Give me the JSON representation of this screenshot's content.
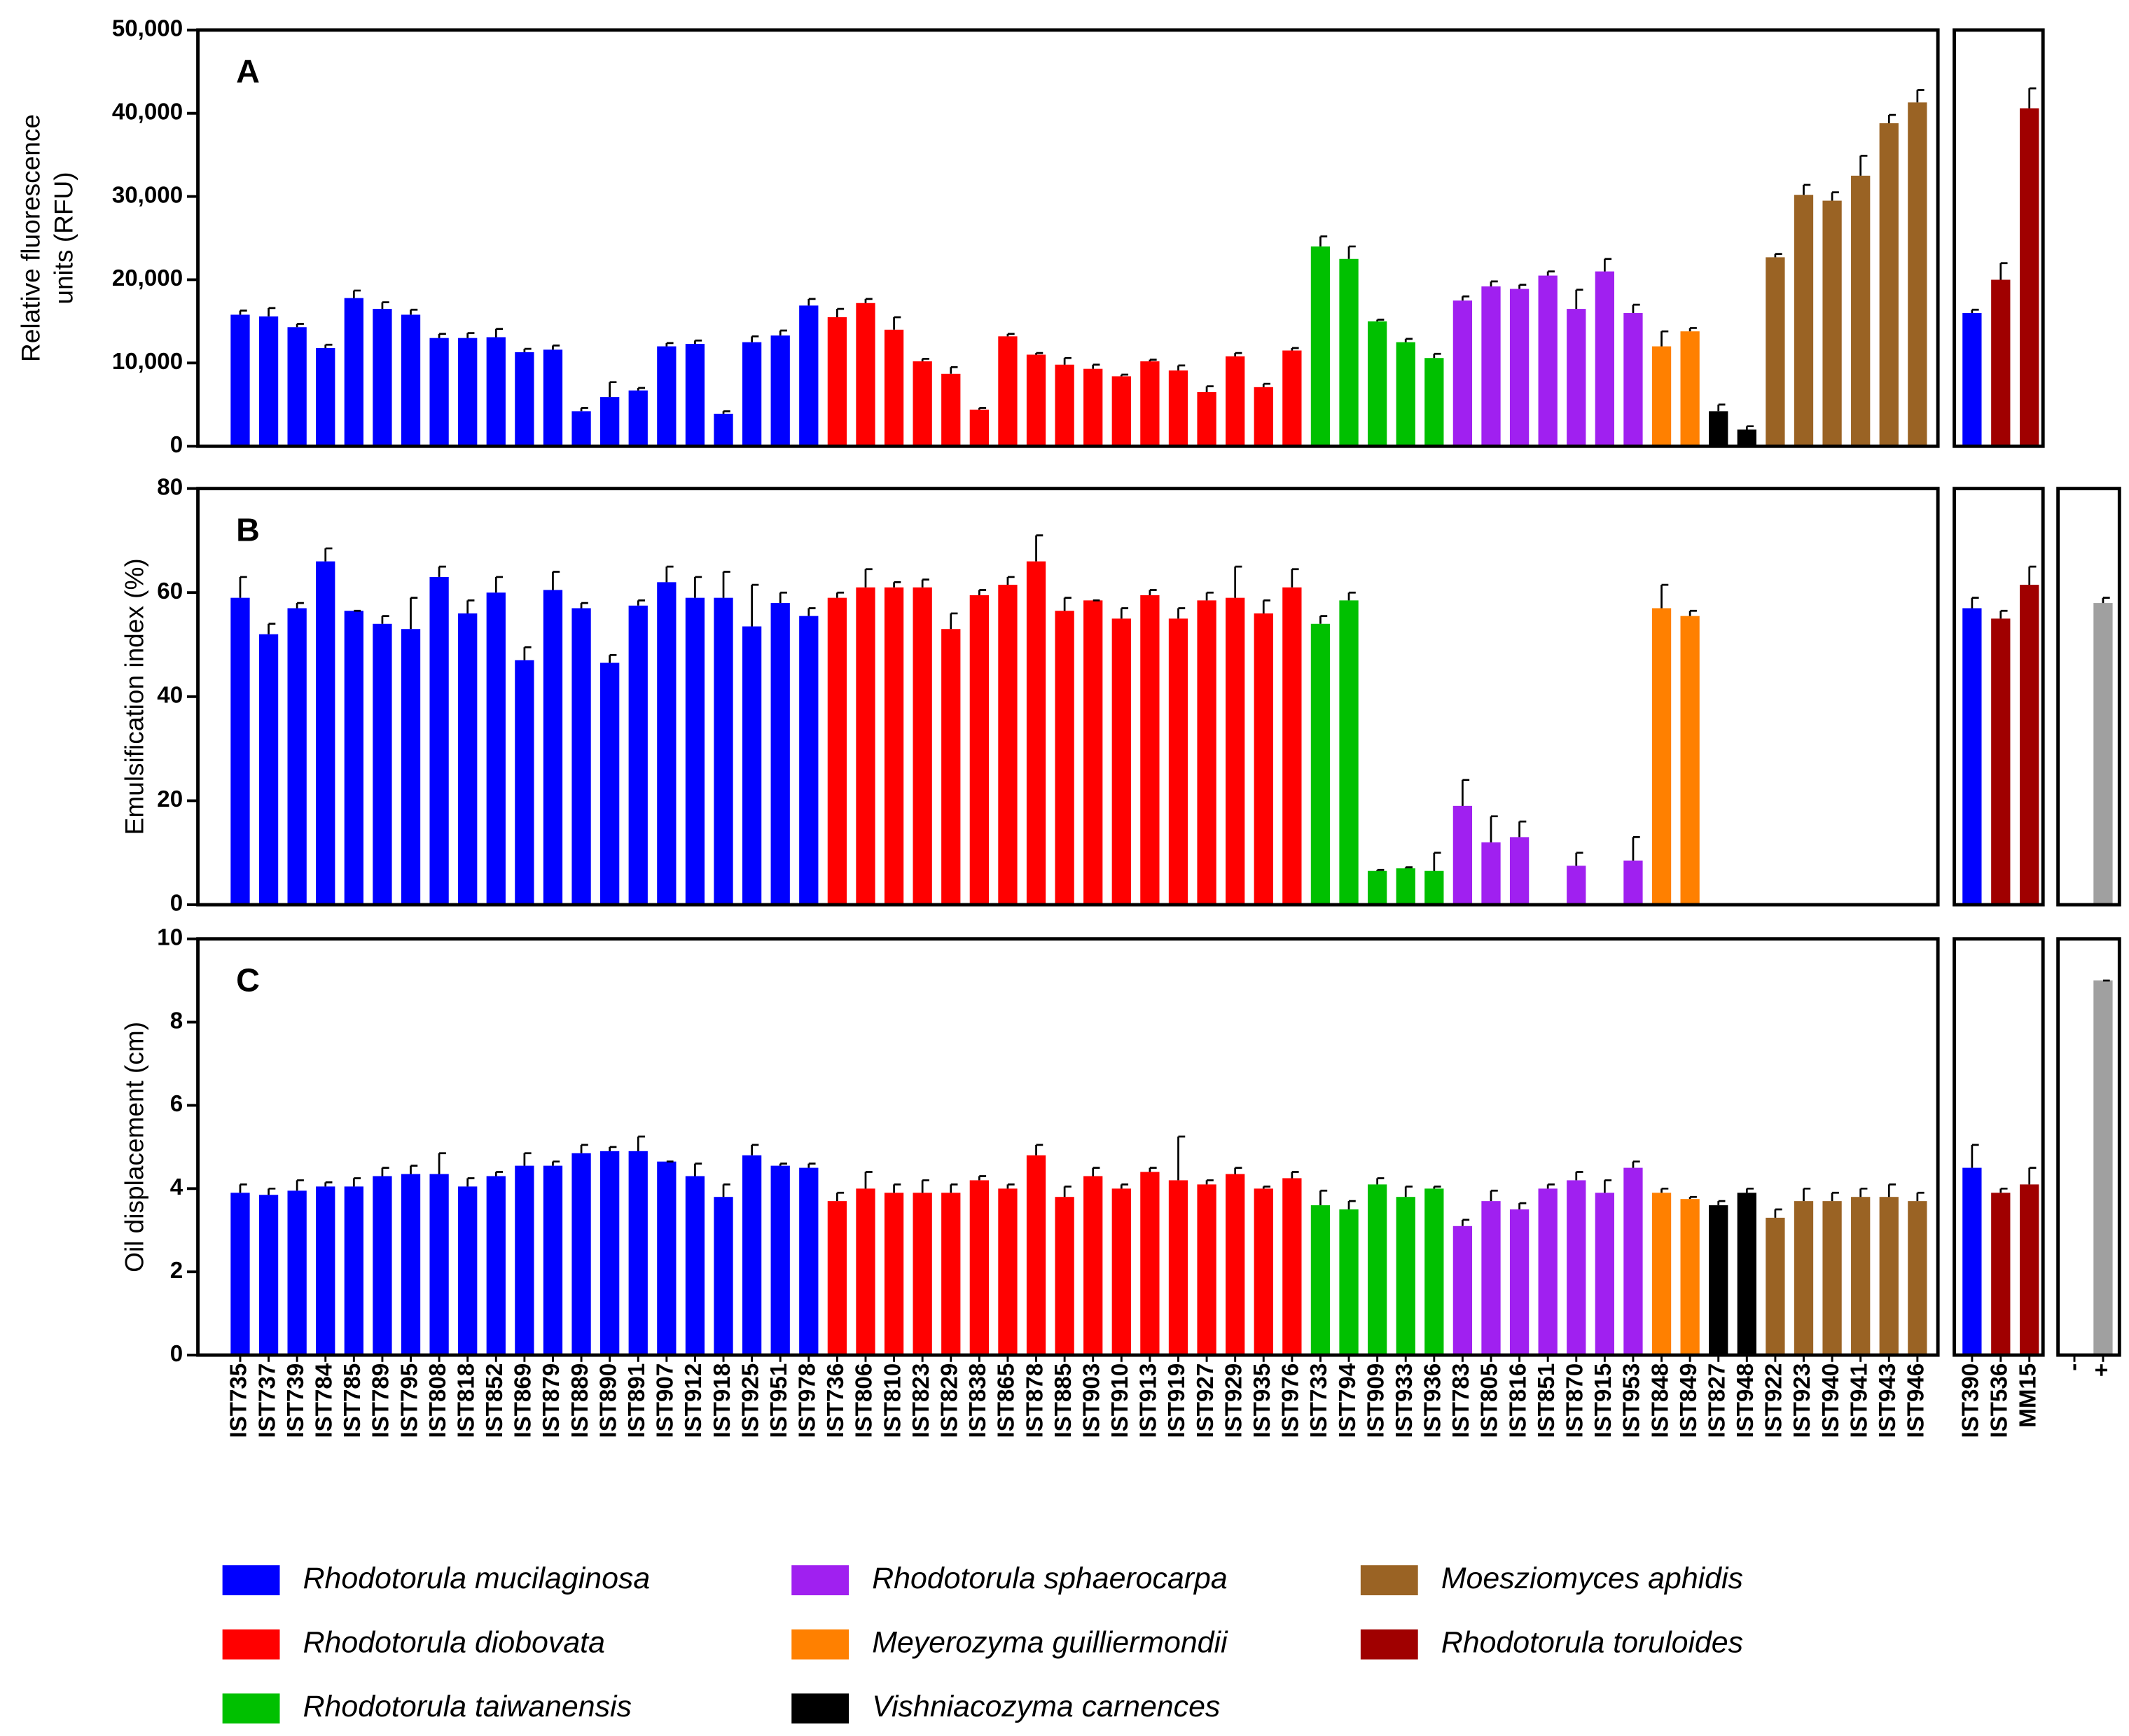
{
  "chart_data": [
    {
      "type": "bar",
      "label": "A",
      "ylabel": [
        "Relative fluorescence",
        "units (RFU)"
      ],
      "ylim": [
        0,
        50000
      ],
      "yticks": [
        0,
        {
          "value": 10000,
          "label": "10,000"
        },
        {
          "value": 20000,
          "label": "20,000"
        },
        {
          "value": 30000,
          "label": "30,000"
        },
        {
          "value": 40000,
          "label": "40,000"
        },
        {
          "value": 50000,
          "label": "50,000"
        }
      ],
      "values": [
        15800,
        15600,
        14300,
        11800,
        17800,
        16500,
        15800,
        13000,
        13000,
        13100,
        11300,
        11600,
        4200,
        5900,
        6700,
        12000,
        12300,
        3900,
        12500,
        13300,
        16900,
        15500,
        17200,
        14000,
        10200,
        8700,
        4400,
        13200,
        11000,
        9800,
        9300,
        8400,
        10200,
        9100,
        6500,
        10800,
        7100,
        11500,
        24000,
        22500,
        15000,
        12500,
        10600,
        17500,
        19200,
        18900,
        20500,
        16500,
        21000,
        16000,
        12000,
        13800,
        4200,
        2000,
        22700,
        30200,
        29500,
        32500,
        38800,
        41300
      ],
      "errors": [
        500,
        1000,
        400,
        400,
        900,
        800,
        600,
        500,
        600,
        1000,
        400,
        500,
        400,
        1800,
        300,
        400,
        400,
        300,
        700,
        600,
        800,
        1000,
        500,
        1500,
        300,
        800,
        200,
        300,
        200,
        800,
        500,
        200,
        200,
        600,
        700,
        400,
        400,
        300,
        1200,
        1500,
        200,
        400,
        500,
        500,
        600,
        500,
        500,
        2300,
        1500,
        1000,
        1800,
        400,
        800,
        400,
        400,
        1200,
        1000,
        2400,
        1000,
        1500
      ],
      "control_values": [
        16000,
        20000,
        40600
      ],
      "control_errors": [
        400,
        2000,
        2400
      ]
    },
    {
      "type": "bar",
      "label": "B",
      "ylabel": [
        "Emulsification index (%)"
      ],
      "ylim": [
        0,
        80
      ],
      "yticks": [
        0,
        20,
        40,
        60,
        80
      ],
      "values": [
        59,
        52,
        57,
        66,
        56.5,
        54,
        53,
        63,
        56,
        60,
        47,
        60.5,
        57,
        46.5,
        57.5,
        62,
        59,
        59,
        53.5,
        58,
        55.5,
        59,
        61,
        61,
        61,
        53,
        59.5,
        61.5,
        66,
        56.5,
        58.5,
        55,
        59.5,
        55,
        58.5,
        59,
        56,
        61,
        54,
        58.5,
        6.5,
        7,
        6.5,
        19,
        12,
        13,
        0,
        7.5,
        0,
        8.5,
        57,
        55.5,
        0,
        0,
        0,
        0,
        0,
        0,
        0,
        0
      ],
      "errors": [
        4,
        2,
        1,
        2.5,
        0,
        1.5,
        6,
        2,
        2.5,
        3,
        2.5,
        3.5,
        1,
        1.5,
        1,
        3,
        4,
        5,
        8,
        2,
        1.5,
        1,
        3.5,
        1,
        1.5,
        3,
        1,
        1.5,
        5,
        2.5,
        0,
        2,
        1,
        2,
        1.5,
        6,
        2.5,
        3.5,
        1.5,
        1.5,
        0.2,
        0.2,
        3.5,
        5,
        5,
        3,
        0,
        2.5,
        0,
        4.5,
        4.5,
        1,
        0,
        0,
        0,
        0,
        0,
        0,
        0,
        0
      ],
      "control_values": [
        57,
        55,
        61.5
      ],
      "control_errors": [
        2,
        1.5,
        3.5
      ],
      "extra_values": [
        0,
        58
      ],
      "extra_errors": [
        0,
        1
      ]
    },
    {
      "type": "bar",
      "label": "C",
      "ylabel": [
        "Oil displacement (cm)"
      ],
      "ylim": [
        0,
        10
      ],
      "yticks": [
        0,
        2,
        4,
        6,
        8,
        10
      ],
      "categories": [
        "IST735",
        "IST737",
        "IST739",
        "IST784",
        "IST785",
        "IST789",
        "IST795",
        "IST808",
        "IST818",
        "IST852",
        "IST869",
        "IST879",
        "IST889",
        "IST890",
        "IST891",
        "IST907",
        "IST912",
        "IST918",
        "IST925",
        "IST951",
        "IST978",
        "IST736",
        "IST806",
        "IST810",
        "IST823",
        "IST829",
        "IST838",
        "IST865",
        "IST878",
        "IST885",
        "IST903",
        "IST910",
        "IST913",
        "IST919",
        "IST927",
        "IST929",
        "IST935",
        "IST976",
        "IST733",
        "IST794",
        "IST909",
        "IST933",
        "IST936",
        "IST783",
        "IST805",
        "IST816",
        "IST851",
        "IST870",
        "IST915",
        "IST953",
        "IST848",
        "IST849",
        "IST827",
        "IST948",
        "IST922",
        "IST923",
        "IST940",
        "IST941",
        "IST943",
        "IST946"
      ],
      "values": [
        3.9,
        3.85,
        3.95,
        4.05,
        4.05,
        4.3,
        4.35,
        4.35,
        4.05,
        4.3,
        4.55,
        4.55,
        4.85,
        4.9,
        4.9,
        4.65,
        4.3,
        3.8,
        4.8,
        4.55,
        4.5,
        3.7,
        4.0,
        3.9,
        3.9,
        3.9,
        4.2,
        4.0,
        4.8,
        3.8,
        4.3,
        4.0,
        4.4,
        4.2,
        4.1,
        4.35,
        4.0,
        4.25,
        3.6,
        3.5,
        4.1,
        3.8,
        4.0,
        3.1,
        3.7,
        3.5,
        4.0,
        4.2,
        3.9,
        4.5,
        3.9,
        3.75,
        3.6,
        3.9,
        3.3,
        3.7,
        3.7,
        3.8,
        3.8,
        3.7
      ],
      "errors": [
        0.2,
        0.15,
        0.25,
        0.1,
        0.2,
        0.2,
        0.2,
        0.5,
        0.2,
        0.1,
        0.3,
        0.1,
        0.2,
        0.1,
        0.35,
        0,
        0.3,
        0.3,
        0.25,
        0.05,
        0.1,
        0.2,
        0.4,
        0.2,
        0.3,
        0.2,
        0.1,
        0.1,
        0.25,
        0.25,
        0.2,
        0.1,
        0.1,
        1.05,
        0.1,
        0.15,
        0.05,
        0.15,
        0.35,
        0.2,
        0.15,
        0.25,
        0.05,
        0.15,
        0.25,
        0.15,
        0.1,
        0.2,
        0.3,
        0.15,
        0.1,
        0.05,
        0.1,
        0.1,
        0.2,
        0.3,
        0.2,
        0.2,
        0.3,
        0.2
      ],
      "control_categories": [
        "IST390",
        "IST536",
        "MM15"
      ],
      "control_values": [
        4.5,
        3.9,
        4.1
      ],
      "control_errors": [
        0.55,
        0.1,
        0.4
      ],
      "extra_categories": [
        "-",
        "+"
      ],
      "extra_values": [
        0,
        9.0
      ],
      "extra_errors": [
        0,
        0
      ]
    }
  ],
  "bar_colors": [
    "#0000ff",
    "#0000ff",
    "#0000ff",
    "#0000ff",
    "#0000ff",
    "#0000ff",
    "#0000ff",
    "#0000ff",
    "#0000ff",
    "#0000ff",
    "#0000ff",
    "#0000ff",
    "#0000ff",
    "#0000ff",
    "#0000ff",
    "#0000ff",
    "#0000ff",
    "#0000ff",
    "#0000ff",
    "#0000ff",
    "#0000ff",
    "#ff0000",
    "#ff0000",
    "#ff0000",
    "#ff0000",
    "#ff0000",
    "#ff0000",
    "#ff0000",
    "#ff0000",
    "#ff0000",
    "#ff0000",
    "#ff0000",
    "#ff0000",
    "#ff0000",
    "#ff0000",
    "#ff0000",
    "#ff0000",
    "#ff0000",
    "#00c000",
    "#00c000",
    "#00c000",
    "#00c000",
    "#00c000",
    "#a020f0",
    "#a020f0",
    "#a020f0",
    "#a020f0",
    "#a020f0",
    "#a020f0",
    "#a020f0",
    "#ff8000",
    "#ff8000",
    "#000000",
    "#000000",
    "#9a6324",
    "#9a6324",
    "#9a6324",
    "#9a6324",
    "#9a6324",
    "#9a6324"
  ],
  "control_colors": [
    "#0000ff",
    "#a00000",
    "#a00000"
  ],
  "extra_colors": [
    "#a0a0a0",
    "#a0a0a0"
  ],
  "legend": [
    {
      "name": "Rhodotorula mucilaginosa",
      "color": "#0000ff"
    },
    {
      "name": "Rhodotorula diobovata",
      "color": "#ff0000"
    },
    {
      "name": "Rhodotorula taiwanensis",
      "color": "#00c000"
    },
    {
      "name": "Rhodotorula sphaerocarpa",
      "color": "#a020f0"
    },
    {
      "name": "Meyerozyma guilliermondii",
      "color": "#ff8000"
    },
    {
      "name": "Vishniacozyma carnences",
      "color": "#000000"
    },
    {
      "name": "Moesziomyces aphidis",
      "color": "#9a6324"
    },
    {
      "name": "Rhodotorula toruloides",
      "color": "#a00000"
    }
  ]
}
